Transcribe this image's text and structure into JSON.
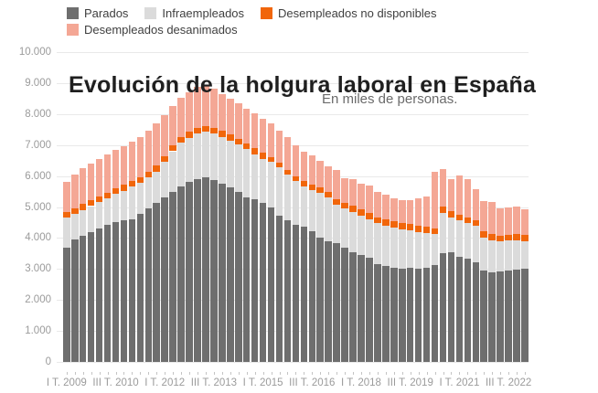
{
  "page": {
    "background": "#ffffff"
  },
  "header": {
    "title": "Evolución de la holgura laboral en España",
    "subtitle": "En miles de personas."
  },
  "chart_data": {
    "type": "bar",
    "stacked": true,
    "title": "Evolución de la holgura laboral en España",
    "subtitle": "En miles de personas.",
    "xlabel": "",
    "ylabel": "",
    "ylim": [
      0,
      10000
    ],
    "grid": true,
    "legend_position": "top-left",
    "yticks": {
      "values": [
        0,
        1000,
        2000,
        3000,
        4000,
        5000,
        6000,
        7000,
        8000,
        9000,
        10000
      ],
      "labels": [
        "0",
        "1.000",
        "2.000",
        "3.000",
        "4.000",
        "5.000",
        "6.000",
        "7.000",
        "8.000",
        "9.000",
        "10.000"
      ]
    },
    "categories": [
      "I T. 2009",
      "II T. 2009",
      "III T. 2009",
      "IV T. 2009",
      "I T. 2010",
      "II T. 2010",
      "III T. 2010",
      "IV T. 2010",
      "I T. 2011",
      "II T. 2011",
      "III T. 2011",
      "IV T. 2011",
      "I T. 2012",
      "II T. 2012",
      "III T. 2012",
      "IV T. 2012",
      "I T. 2013",
      "II T. 2013",
      "III T. 2013",
      "IV T. 2013",
      "I T. 2014",
      "II T. 2014",
      "III T. 2014",
      "IV T. 2014",
      "I T. 2015",
      "II T. 2015",
      "III T. 2015",
      "IV T. 2015",
      "I T. 2016",
      "II T. 2016",
      "III T. 2016",
      "IV T. 2016",
      "I T. 2017",
      "II T. 2017",
      "III T. 2017",
      "IV T. 2017",
      "I T. 2018",
      "II T. 2018",
      "III T. 2018",
      "IV T. 2018",
      "I T. 2019",
      "II T. 2019",
      "III T. 2019",
      "IV T. 2019",
      "I T. 2020",
      "II T. 2020",
      "III T. 2020",
      "IV T. 2020",
      "I T. 2021",
      "II T. 2021",
      "III T. 2021",
      "IV T. 2021",
      "I T. 2022",
      "II T. 2022",
      "III T. 2022",
      "IV T. 2022",
      "I T. 2023"
    ],
    "xtick_indices": [
      0,
      6,
      12,
      18,
      24,
      30,
      36,
      42,
      48,
      54
    ],
    "series": [
      {
        "name": "Parados",
        "color": "#6e6e6e",
        "values": [
          3700,
          3940,
          4060,
          4180,
          4300,
          4420,
          4500,
          4560,
          4610,
          4770,
          4970,
          5130,
          5300,
          5500,
          5650,
          5800,
          5900,
          5950,
          5870,
          5760,
          5640,
          5480,
          5320,
          5240,
          5130,
          5000,
          4730,
          4570,
          4420,
          4360,
          4210,
          4010,
          3890,
          3840,
          3680,
          3550,
          3450,
          3350,
          3170,
          3090,
          3040,
          3020,
          3040,
          3000,
          3040,
          3120,
          3520,
          3540,
          3390,
          3320,
          3220,
          2940,
          2880,
          2925,
          2945,
          2975,
          2995
        ]
      },
      {
        "name": "Infraempleados",
        "color": "#dbdbdb",
        "values": [
          950,
          850,
          850,
          850,
          860,
          870,
          920,
          970,
          1040,
          1020,
          980,
          1020,
          1150,
          1300,
          1430,
          1440,
          1470,
          1490,
          1500,
          1510,
          1510,
          1540,
          1540,
          1460,
          1430,
          1450,
          1550,
          1470,
          1420,
          1310,
          1330,
          1450,
          1430,
          1230,
          1270,
          1300,
          1280,
          1250,
          1310,
          1320,
          1300,
          1260,
          1200,
          1200,
          1120,
          1020,
          1300,
          1130,
          1170,
          1160,
          1170,
          1070,
          1050,
          955,
          965,
          955,
          885
        ]
      },
      {
        "name": "Desempleados no disponibles",
        "color": "#f1660b",
        "values": [
          180,
          180,
          180,
          180,
          180,
          180,
          180,
          180,
          180,
          180,
          180,
          180,
          200,
          190,
          190,
          180,
          180,
          180,
          180,
          190,
          190,
          190,
          190,
          190,
          190,
          160,
          150,
          150,
          160,
          170,
          180,
          160,
          170,
          180,
          180,
          200,
          200,
          200,
          190,
          190,
          190,
          200,
          210,
          210,
          220,
          170,
          200,
          200,
          190,
          170,
          180,
          200,
          210,
          200,
          200,
          210,
          230
        ]
      },
      {
        "name": "Desempleados desanimados",
        "color": "#f4a795",
        "values": [
          970,
          1080,
          1160,
          1190,
          1210,
          1230,
          1250,
          1240,
          1270,
          1280,
          1320,
          1370,
          1330,
          1270,
          1270,
          1280,
          1320,
          1330,
          1280,
          1190,
          1160,
          1130,
          1110,
          1120,
          1110,
          1090,
          1020,
          1060,
          1000,
          960,
          960,
          860,
          820,
          940,
          790,
          840,
          830,
          890,
          820,
          790,
          740,
          750,
          780,
          860,
          950,
          1840,
          1210,
          1040,
          1270,
          1240,
          1020,
          990,
          1010,
          870,
          890,
          890,
          820
        ]
      }
    ]
  }
}
